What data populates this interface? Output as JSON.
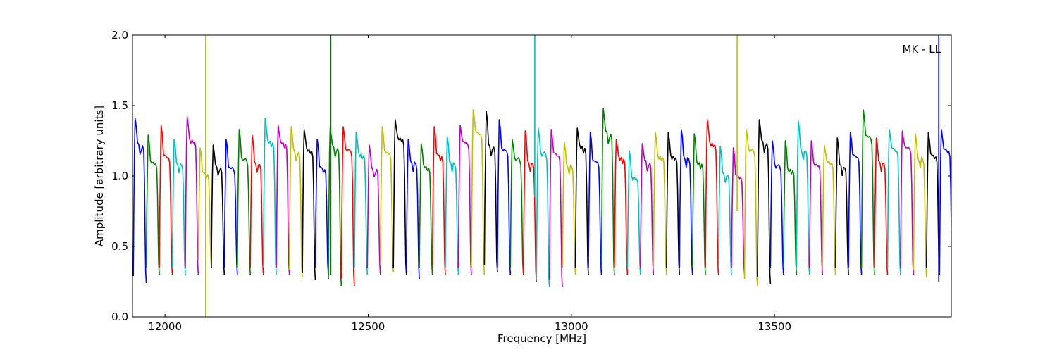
{
  "chart_data": {
    "type": "line",
    "title": "",
    "xlabel": "Frequency [MHz]",
    "ylabel": "Amplitude [arbitrary units]",
    "annotation": "MK - LL",
    "xlim": [
      11920,
      13935
    ],
    "ylim": [
      0.0,
      2.0
    ],
    "xticks": [
      12000,
      12500,
      13000,
      13500
    ],
    "yticks": [
      0.0,
      0.5,
      1.0,
      1.5,
      2.0
    ],
    "xtick_labels": [
      "12000",
      "12500",
      "13000",
      "13500"
    ],
    "ytick_labels": [
      "0.0",
      "0.5",
      "1.0",
      "1.5",
      "2.0"
    ],
    "grid": false,
    "legend": "none",
    "channel_width_mhz": 32,
    "color_cycle": [
      "#0000ff",
      "#008000",
      "#ff0000",
      "#00bfbf",
      "#bf00bf",
      "#bfbf00",
      "#000000"
    ],
    "channels": [
      {
        "start": 11922,
        "peak": 1.41,
        "min": 0.24,
        "color": "#0000ff"
      },
      {
        "start": 11954,
        "peak": 1.29,
        "min": 0.3,
        "color": "#008000"
      },
      {
        "start": 11986,
        "peak": 1.36,
        "min": 0.3,
        "color": "#ff0000"
      },
      {
        "start": 12018,
        "peak": 1.26,
        "min": 0.3,
        "color": "#00bfbf"
      },
      {
        "start": 12050,
        "peak": 1.42,
        "min": 0.3,
        "color": "#bf00bf"
      },
      {
        "start": 12082,
        "peak": 1.2,
        "min": 0.35,
        "color": "#bfbf00"
      },
      {
        "start": 12114,
        "peak": 1.22,
        "min": 0.3,
        "color": "#000000"
      },
      {
        "start": 12146,
        "peak": 1.26,
        "min": 0.3,
        "color": "#0000ff"
      },
      {
        "start": 12178,
        "peak": 1.33,
        "min": 0.3,
        "color": "#008000"
      },
      {
        "start": 12210,
        "peak": 1.29,
        "min": 0.3,
        "color": "#ff0000"
      },
      {
        "start": 12242,
        "peak": 1.41,
        "min": 0.3,
        "color": "#00bfbf"
      },
      {
        "start": 12274,
        "peak": 1.36,
        "min": 0.3,
        "color": "#bf00bf"
      },
      {
        "start": 12306,
        "peak": 1.35,
        "min": 0.28,
        "color": "#bfbf00"
      },
      {
        "start": 12338,
        "peak": 1.33,
        "min": 0.26,
        "color": "#000000"
      },
      {
        "start": 12370,
        "peak": 1.26,
        "min": 0.3,
        "color": "#0000ff"
      },
      {
        "start": 12402,
        "peak": 1.34,
        "min": 0.22,
        "color": "#008000"
      },
      {
        "start": 12434,
        "peak": 1.35,
        "min": 0.22,
        "color": "#ff0000"
      },
      {
        "start": 12466,
        "peak": 1.31,
        "min": 0.3,
        "color": "#00bfbf"
      },
      {
        "start": 12498,
        "peak": 1.22,
        "min": 0.3,
        "color": "#bf00bf"
      },
      {
        "start": 12530,
        "peak": 1.35,
        "min": 0.32,
        "color": "#bfbf00"
      },
      {
        "start": 12562,
        "peak": 1.4,
        "min": 0.3,
        "color": "#000000"
      },
      {
        "start": 12594,
        "peak": 1.26,
        "min": 0.27,
        "color": "#0000ff"
      },
      {
        "start": 12626,
        "peak": 1.23,
        "min": 0.3,
        "color": "#008000"
      },
      {
        "start": 12658,
        "peak": 1.35,
        "min": 0.3,
        "color": "#ff0000"
      },
      {
        "start": 12690,
        "peak": 1.28,
        "min": 0.3,
        "color": "#00bfbf"
      },
      {
        "start": 12722,
        "peak": 1.36,
        "min": 0.3,
        "color": "#bf00bf"
      },
      {
        "start": 12754,
        "peak": 1.47,
        "min": 0.3,
        "color": "#bfbf00"
      },
      {
        "start": 12786,
        "peak": 1.46,
        "min": 0.32,
        "color": "#000000"
      },
      {
        "start": 12818,
        "peak": 1.4,
        "min": 0.3,
        "color": "#0000ff"
      },
      {
        "start": 12850,
        "peak": 1.26,
        "min": 0.3,
        "color": "#008000"
      },
      {
        "start": 12882,
        "peak": 1.32,
        "min": 0.25,
        "color": "#ff0000"
      },
      {
        "start": 12914,
        "peak": 1.34,
        "min": 0.21,
        "color": "#00bfbf"
      },
      {
        "start": 12946,
        "peak": 1.33,
        "min": 0.21,
        "color": "#bf00bf"
      },
      {
        "start": 12978,
        "peak": 1.24,
        "min": 0.3,
        "color": "#bfbf00"
      },
      {
        "start": 13010,
        "peak": 1.34,
        "min": 0.3,
        "color": "#000000"
      },
      {
        "start": 13042,
        "peak": 1.31,
        "min": 0.3,
        "color": "#0000ff"
      },
      {
        "start": 13074,
        "peak": 1.48,
        "min": 0.3,
        "color": "#008000"
      },
      {
        "start": 13106,
        "peak": 1.26,
        "min": 0.3,
        "color": "#ff0000"
      },
      {
        "start": 13138,
        "peak": 1.18,
        "min": 0.3,
        "color": "#00bfbf"
      },
      {
        "start": 13170,
        "peak": 1.23,
        "min": 0.3,
        "color": "#bf00bf"
      },
      {
        "start": 13202,
        "peak": 1.31,
        "min": 0.3,
        "color": "#bfbf00"
      },
      {
        "start": 13234,
        "peak": 1.31,
        "min": 0.3,
        "color": "#000000"
      },
      {
        "start": 13266,
        "peak": 1.33,
        "min": 0.3,
        "color": "#0000ff"
      },
      {
        "start": 13298,
        "peak": 1.3,
        "min": 0.3,
        "color": "#008000"
      },
      {
        "start": 13330,
        "peak": 1.4,
        "min": 0.3,
        "color": "#ff0000"
      },
      {
        "start": 13362,
        "peak": 1.21,
        "min": 0.3,
        "color": "#00bfbf"
      },
      {
        "start": 13394,
        "peak": 1.2,
        "min": 0.3,
        "color": "#bf00bf"
      },
      {
        "start": 13426,
        "peak": 1.33,
        "min": 0.22,
        "color": "#bfbf00"
      },
      {
        "start": 13458,
        "peak": 1.4,
        "min": 0.23,
        "color": "#000000"
      },
      {
        "start": 13490,
        "peak": 1.25,
        "min": 0.3,
        "color": "#0000ff"
      },
      {
        "start": 13522,
        "peak": 1.25,
        "min": 0.3,
        "color": "#008000"
      },
      {
        "start": 13554,
        "peak": 1.39,
        "min": 0.3,
        "color": "#00bfbf"
      },
      {
        "start": 13586,
        "peak": 1.25,
        "min": 0.3,
        "color": "#bf00bf"
      },
      {
        "start": 13618,
        "peak": 1.22,
        "min": 0.3,
        "color": "#bfbf00"
      },
      {
        "start": 13650,
        "peak": 1.27,
        "min": 0.3,
        "color": "#000000"
      },
      {
        "start": 13682,
        "peak": 1.31,
        "min": 0.3,
        "color": "#0000ff"
      },
      {
        "start": 13714,
        "peak": 1.47,
        "min": 0.3,
        "color": "#008000"
      },
      {
        "start": 13746,
        "peak": 1.27,
        "min": 0.3,
        "color": "#ff0000"
      },
      {
        "start": 13778,
        "peak": 1.33,
        "min": 0.3,
        "color": "#00bfbf"
      },
      {
        "start": 13810,
        "peak": 1.32,
        "min": 0.3,
        "color": "#bf00bf"
      },
      {
        "start": 13842,
        "peak": 1.3,
        "min": 0.28,
        "color": "#bfbf00"
      },
      {
        "start": 13874,
        "peak": 1.31,
        "min": 0.3,
        "color": "#000000"
      },
      {
        "start": 13906,
        "peak": 1.33,
        "min": 0.25,
        "color": "#0000ff"
      }
    ],
    "spikes": [
      {
        "x": 12100,
        "y_low": 0.0,
        "y_high": 2.0,
        "color": "#bfbf00"
      },
      {
        "x": 12408,
        "y_low": 0.3,
        "y_high": 2.0,
        "color": "#008000"
      },
      {
        "x": 12910,
        "y_low": 0.85,
        "y_high": 2.0,
        "color": "#00bfbf"
      },
      {
        "x": 13408,
        "y_low": 0.75,
        "y_high": 2.0,
        "color": "#bfbf00"
      },
      {
        "x": 13904,
        "y_low": 0.25,
        "y_high": 2.0,
        "color": "#0000ff"
      }
    ]
  }
}
